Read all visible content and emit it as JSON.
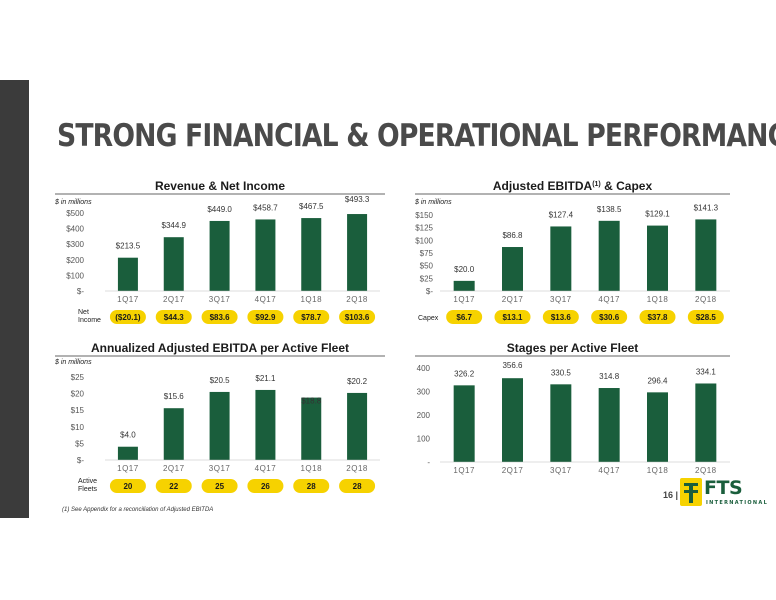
{
  "page": {
    "title": "STRONG FINANCIAL & OPERATIONAL PERFORMANCE",
    "page_number": "16 |",
    "logo_name": "FTS",
    "logo_sub": "INTERNATIONAL",
    "footnote": "(1)    See Appendix for a reconciliation of Adjusted EBITDA"
  },
  "colors": {
    "bar": "#1a5e3c",
    "pill": "#f6d200",
    "sidebar": "#3b3b3b"
  },
  "chart_data": [
    {
      "type": "bar",
      "title": "Revenue & Net Income",
      "units": "$ in millions",
      "categories": [
        "1Q17",
        "2Q17",
        "3Q17",
        "4Q17",
        "1Q18",
        "2Q18"
      ],
      "values": [
        213.5,
        344.9,
        449.0,
        458.7,
        467.5,
        493.3
      ],
      "value_labels": [
        "$213.5",
        "$344.9",
        "$449.0",
        "$458.7",
        "$467.5",
        "$493.3"
      ],
      "ylim": [
        0,
        500
      ],
      "yticks": [
        0,
        100,
        200,
        300,
        400,
        500
      ],
      "yticklabels": [
        "$-",
        "$100",
        "$200",
        "$300",
        "$400",
        "$500"
      ],
      "row": {
        "label": "Net Income",
        "values": [
          "($20.1)",
          "$44.3",
          "$83.6",
          "$92.9",
          "$78.7",
          "$103.6"
        ]
      }
    },
    {
      "type": "bar",
      "title": "Adjusted EBITDA",
      "title_sup": "(1)",
      "title_suffix": " & Capex",
      "units": "$ in millions",
      "categories": [
        "1Q17",
        "2Q17",
        "3Q17",
        "4Q17",
        "1Q18",
        "2Q18"
      ],
      "values": [
        20.0,
        86.8,
        127.4,
        138.5,
        129.1,
        141.3
      ],
      "value_labels": [
        "$20.0",
        "$86.8",
        "$127.4",
        "$138.5",
        "$129.1",
        "$141.3"
      ],
      "ylim": [
        0,
        150
      ],
      "yticks": [
        0,
        25,
        50,
        75,
        100,
        125,
        150
      ],
      "yticklabels": [
        "$-",
        "$25",
        "$50",
        "$75",
        "$100",
        "$125",
        "$150"
      ],
      "row": {
        "label": "Capex",
        "values": [
          "$6.7",
          "$13.1",
          "$13.6",
          "$30.6",
          "$37.8",
          "$28.5"
        ]
      }
    },
    {
      "type": "bar",
      "title": "Annualized Adjusted EBITDA per Active Fleet",
      "units": "$ in millions",
      "categories": [
        "1Q17",
        "2Q17",
        "3Q17",
        "4Q17",
        "1Q18",
        "2Q18"
      ],
      "values": [
        4.0,
        15.6,
        20.5,
        21.1,
        18.8,
        20.2
      ],
      "value_labels": [
        "$4.0",
        "$15.6",
        "$20.5",
        "$21.1",
        "$18.8",
        "$20.2"
      ],
      "ylim": [
        0,
        25
      ],
      "yticks": [
        0,
        5,
        10,
        15,
        20,
        25
      ],
      "yticklabels": [
        "$-",
        "$5",
        "$10",
        "$15",
        "$20",
        "$25"
      ],
      "row": {
        "label": "Active Fleets",
        "values": [
          "20",
          "22",
          "25",
          "26",
          "28",
          "28"
        ]
      }
    },
    {
      "type": "bar",
      "title": "Stages per Active Fleet",
      "units": "",
      "categories": [
        "1Q17",
        "2Q17",
        "3Q17",
        "4Q17",
        "1Q18",
        "2Q18"
      ],
      "values": [
        326.2,
        356.6,
        330.5,
        314.8,
        296.4,
        334.1
      ],
      "value_labels": [
        "326.2",
        "356.6",
        "330.5",
        "314.8",
        "296.4",
        "334.1"
      ],
      "ylim": [
        0,
        400
      ],
      "yticks": [
        0,
        100,
        200,
        300,
        400
      ],
      "yticklabels": [
        "-",
        "100",
        "200",
        "300",
        "400"
      ]
    }
  ]
}
